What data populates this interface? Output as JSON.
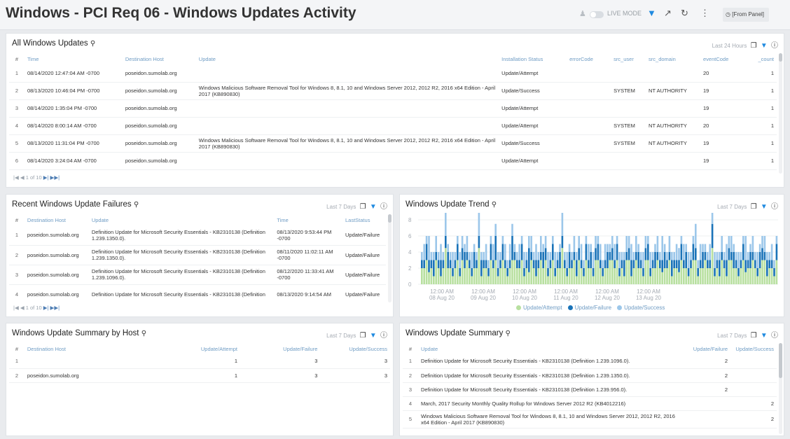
{
  "header": {
    "title": "Windows - PCI Req 06 - Windows Updates Activity",
    "live_mode": "LIVE MODE",
    "time_range": "[From Panel]"
  },
  "icons": {
    "user": "user-icon",
    "filter": "filter-icon",
    "share": "share-icon",
    "refresh": "refresh-icon",
    "more": "more-icon",
    "clock": "clock-icon",
    "search": "zoom-icon",
    "copy": "copy-icon",
    "info": "info-icon"
  },
  "colors": {
    "accent": "#1f8ae0",
    "attempt": "#b8e0a0",
    "failure": "#1a73b8",
    "success": "#9cc7ea"
  },
  "all_updates": {
    "title": "All Windows Updates",
    "range": "Last 24 Hours",
    "columns": [
      "#",
      "Time",
      "Destination Host",
      "Update",
      "Installation Status",
      "errorCode",
      "src_user",
      "src_domain",
      "eventCode",
      "_count"
    ],
    "rows": [
      [
        "1",
        "08/14/2020 12:47:04 AM -0700",
        "poseidon.sumolab.org",
        "",
        "Update/Attempt",
        "",
        "",
        "",
        "20",
        "1"
      ],
      [
        "2",
        "08/13/2020 10:46:04 PM -0700",
        "poseidon.sumolab.org",
        "Windows Malicious Software Removal Tool for Windows 8, 8.1, 10 and Windows Server 2012, 2012 R2, 2016 x64 Edition - April 2017 (KB890830)",
        "Update/Success",
        "",
        "SYSTEM",
        "NT AUTHORITY",
        "19",
        "1"
      ],
      [
        "3",
        "08/14/2020 1:35:04 PM -0700",
        "poseidon.sumolab.org",
        "",
        "Update/Attempt",
        "",
        "",
        "",
        "19",
        "1"
      ],
      [
        "4",
        "08/14/2020 8:00:14 AM -0700",
        "poseidon.sumolab.org",
        "",
        "Update/Attempt",
        "",
        "SYSTEM",
        "NT AUTHORITY",
        "20",
        "1"
      ],
      [
        "5",
        "08/13/2020 11:31:04 PM -0700",
        "poseidon.sumolab.org",
        "Windows Malicious Software Removal Tool for Windows 8, 8.1, 10 and Windows Server 2012, 2012 R2, 2016 x64 Edition - April 2017 (KB890830)",
        "Update/Success",
        "",
        "SYSTEM",
        "NT AUTHORITY",
        "19",
        "1"
      ],
      [
        "6",
        "08/14/2020 3:24:04 AM -0700",
        "poseidon.sumolab.org",
        "",
        "Update/Attempt",
        "",
        "",
        "",
        "19",
        "1"
      ]
    ],
    "pager": {
      "page": "1",
      "of": "of 10"
    }
  },
  "failures": {
    "title": "Recent Windows Update Failures",
    "range": "Last 7 Days",
    "columns": [
      "#",
      "Destination Host",
      "Update",
      "Time",
      "LastStatus"
    ],
    "rows": [
      [
        "1",
        "poseidon.sumolab.org",
        "Definition Update for Microsoft Security Essentials - KB2310138 (Definition 1.239.1350.0).",
        "08/13/2020 9:53:44 PM -0700",
        "Update/Failure"
      ],
      [
        "2",
        "poseidon.sumolab.org",
        "Definition Update for Microsoft Security Essentials - KB2310138 (Definition 1.239.1350.0).",
        "08/11/2020 11:02:11 AM -0700",
        "Update/Failure"
      ],
      [
        "3",
        "poseidon.sumolab.org",
        "Definition Update for Microsoft Security Essentials - KB2310138 (Definition 1.239.1096.0).",
        "08/12/2020 11:33:41 AM -0700",
        "Update/Failure"
      ],
      [
        "4",
        "poseidon.sumolab.org",
        "Definition Update for Microsoft Security Essentials - KB2310138 (Definition",
        "08/13/2020 9:14:54 AM",
        "Update/Failure"
      ]
    ],
    "pager": {
      "page": "1",
      "of": "of 10"
    }
  },
  "trend": {
    "title": "Windows Update Trend",
    "range": "Last 7 Days"
  },
  "chart_data": {
    "type": "bar",
    "stacked": true,
    "ylim": [
      0,
      8
    ],
    "yticks": [
      "0",
      "2",
      "4",
      "6",
      "8"
    ],
    "xticks": [
      {
        "time": "12:00 AM",
        "date": "08 Aug 20"
      },
      {
        "time": "12:00 AM",
        "date": "09 Aug 20"
      },
      {
        "time": "12:00 AM",
        "date": "10 Aug 20"
      },
      {
        "time": "12:00 AM",
        "date": "11 Aug 20"
      },
      {
        "time": "12:00 AM",
        "date": "12 Aug 20"
      },
      {
        "time": "12:00 AM",
        "date": "13 Aug 20"
      }
    ],
    "legend_position": "bottom",
    "series": [
      {
        "name": "Update/Attempt",
        "color": "#b8e0a0",
        "pattern": [
          2,
          2,
          3,
          1,
          2,
          1,
          3,
          2,
          1,
          2,
          3,
          2,
          2,
          1,
          2,
          3,
          1,
          2,
          2,
          3,
          2,
          1,
          2,
          2,
          3,
          1,
          2,
          2,
          1,
          3,
          2,
          2,
          1,
          2,
          3,
          2,
          1,
          2,
          2,
          3
        ]
      },
      {
        "name": "Update/Failure",
        "color": "#1a73b8",
        "pattern": [
          1,
          1,
          2,
          1,
          1,
          2,
          1,
          1,
          2,
          1,
          1,
          2,
          1,
          1,
          1,
          2,
          1,
          1,
          2,
          1,
          1,
          1,
          2,
          1,
          1,
          2,
          1,
          1,
          1,
          2,
          1,
          2,
          1,
          1,
          2,
          1,
          1,
          1,
          2,
          1
        ]
      },
      {
        "name": "Update/Success",
        "color": "#9cc7ea",
        "pattern": [
          1,
          2,
          1,
          2,
          1,
          1,
          2,
          1,
          2,
          1,
          2,
          1,
          1,
          2,
          1,
          1,
          2,
          1,
          1,
          2,
          1,
          2,
          1,
          1,
          2,
          1,
          1,
          2,
          1,
          1,
          2,
          1,
          2,
          1,
          1,
          2,
          1,
          2,
          1,
          1
        ]
      }
    ]
  },
  "summary_host": {
    "title": "Windows Update Summary by Host",
    "range": "Last 7 Days",
    "columns": [
      "#",
      "Destination Host",
      "Update/Attempt",
      "Update/Failure",
      "Update/Success"
    ],
    "rows": [
      [
        "1",
        "",
        "1",
        "3",
        "3"
      ],
      [
        "2",
        "poseidon.sumolab.org",
        "1",
        "3",
        "3"
      ]
    ]
  },
  "summary": {
    "title": "Windows Update Summary",
    "range": "Last 7 Days",
    "columns": [
      "#",
      "Update",
      "Update/Failure",
      "Update/Success"
    ],
    "rows": [
      [
        "1",
        "Definition Update for Microsoft Security Essentials - KB2310138 (Definition 1.239.1096.0).",
        "2",
        ""
      ],
      [
        "2",
        "Definition Update for Microsoft Security Essentials - KB2310138 (Definition 1.239.1350.0).",
        "2",
        ""
      ],
      [
        "3",
        "Definition Update for Microsoft Security Essentials - KB2310138 (Definition 1.239.956.0).",
        "2",
        ""
      ],
      [
        "4",
        "March, 2017 Security Monthly Quality Rollup for Windows Server 2012 R2 (KB4012216)",
        "",
        "2"
      ],
      [
        "5",
        "Windows Malicious Software Removal Tool for Windows 8, 8.1, 10 and Windows Server 2012, 2012 R2, 2016 x64 Edition - April 2017 (KB890830)",
        "",
        "2"
      ]
    ]
  }
}
